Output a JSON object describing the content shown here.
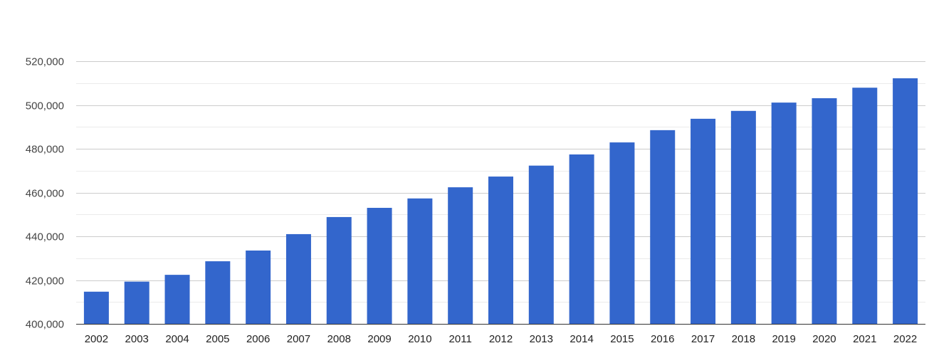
{
  "chart_data": {
    "type": "bar",
    "title": "",
    "xlabel": "",
    "ylabel": "",
    "categories": [
      "2002",
      "2003",
      "2004",
      "2005",
      "2006",
      "2007",
      "2008",
      "2009",
      "2010",
      "2011",
      "2012",
      "2013",
      "2014",
      "2015",
      "2016",
      "2017",
      "2018",
      "2019",
      "2020",
      "2021",
      "2022"
    ],
    "values": [
      414700,
      419300,
      422400,
      428600,
      433500,
      441000,
      448800,
      453000,
      457300,
      462400,
      467300,
      472300,
      477400,
      482900,
      488500,
      493700,
      497300,
      501100,
      503100,
      507900,
      512200
    ],
    "ylim": [
      400000,
      520000
    ],
    "y_ticks": [
      400000,
      420000,
      440000,
      460000,
      480000,
      500000,
      520000
    ],
    "y_tick_labels": [
      "400,000",
      "420,000",
      "440,000",
      "460,000",
      "480,000",
      "500,000",
      "520,000"
    ],
    "grid": true,
    "legend": "none",
    "bar_color": "#3366cc",
    "grid_color": "#cccccc",
    "minor_grid_color": "#ebebeb"
  }
}
